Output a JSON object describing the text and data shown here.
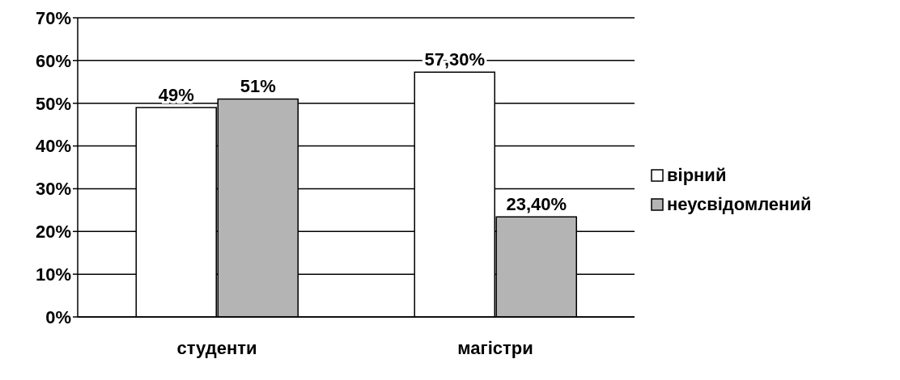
{
  "chart_data": {
    "type": "bar",
    "categories": [
      "студенти",
      "магістри"
    ],
    "series": [
      {
        "name": "вірний",
        "color": "#ffffff",
        "values": [
          49,
          57.3
        ],
        "value_labels": [
          "49%",
          "57,30%"
        ]
      },
      {
        "name": "неусвідомлений",
        "color": "#b4b4b4",
        "values": [
          51,
          23.4
        ],
        "value_labels": [
          "51%",
          "23,40%"
        ]
      }
    ],
    "ylim": [
      0,
      70
    ],
    "yticks": [
      {
        "value": 0,
        "label": "0%"
      },
      {
        "value": 10,
        "label": "10%"
      },
      {
        "value": 20,
        "label": "20%"
      },
      {
        "value": 30,
        "label": "30%"
      },
      {
        "value": 40,
        "label": "40%"
      },
      {
        "value": 50,
        "label": "50%"
      },
      {
        "value": 60,
        "label": "60%"
      },
      {
        "value": 70,
        "label": "70%"
      }
    ],
    "grid": "y",
    "legend": "right"
  }
}
